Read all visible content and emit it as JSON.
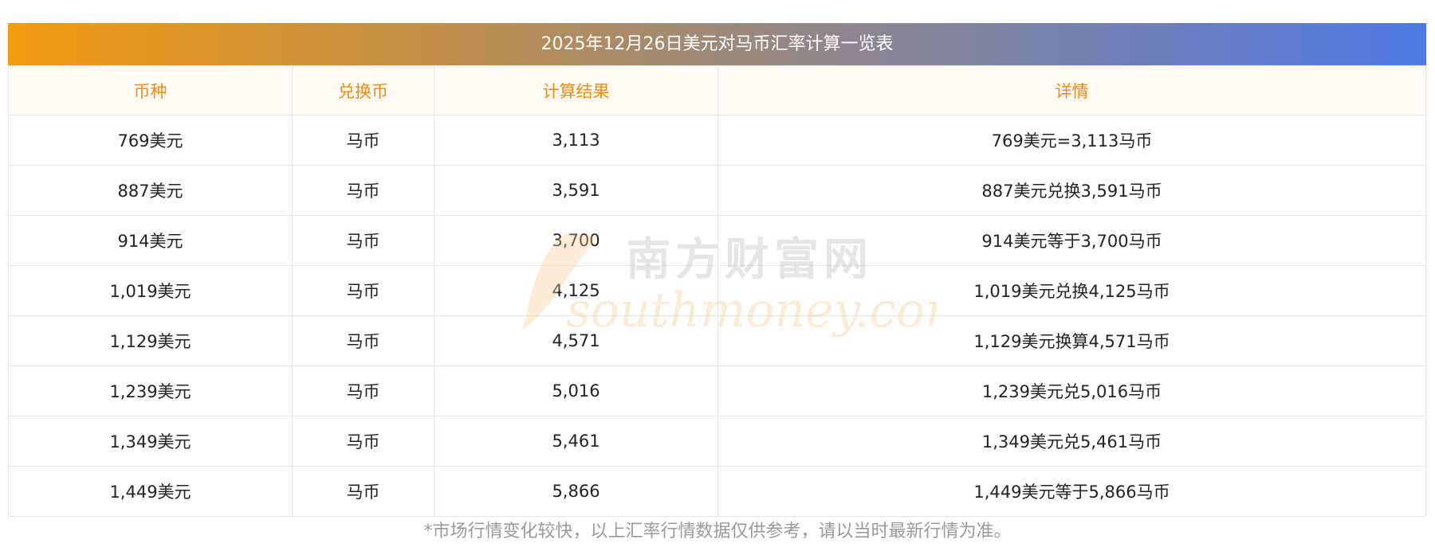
{
  "title": "2025年12月26日美元对马币汇率计算一览表",
  "headers": [
    "币种",
    "兑换币",
    "计算结果",
    "详情"
  ],
  "rows": [
    [
      "769美元",
      "马币",
      "3,113",
      "769美元=3,113马币"
    ],
    [
      "887美元",
      "马币",
      "3,591",
      "887美元兑换3,591马币"
    ],
    [
      "914美元",
      "马币",
      "3,700",
      "914美元等于3,700马币"
    ],
    [
      "1,019美元",
      "马币",
      "4,125",
      "1,019美元兑换4,125马币"
    ],
    [
      "1,129美元",
      "马币",
      "4,571",
      "1,129美元换算4,571马币"
    ],
    [
      "1,239美元",
      "马币",
      "5,016",
      "1,239美元兑5,016马币"
    ],
    [
      "1,349美元",
      "马币",
      "5,461",
      "1,349美元兑5,461马币"
    ],
    [
      "1,449美元",
      "马币",
      "5,866",
      "1,449美元等于5,866马币"
    ]
  ],
  "footnote": "*市场行情变化较快，以上汇率行情数据仅供参考，请以当时最新行情为准。",
  "watermark": {
    "cn": "南方财富网",
    "en": "southmoney.com"
  },
  "colors": {
    "gradient_start": "#f39a10",
    "gradient_end": "#4f79e6",
    "header_text": "#f08c10",
    "header_bg": "#fffaf3",
    "footnote": "#999999"
  }
}
